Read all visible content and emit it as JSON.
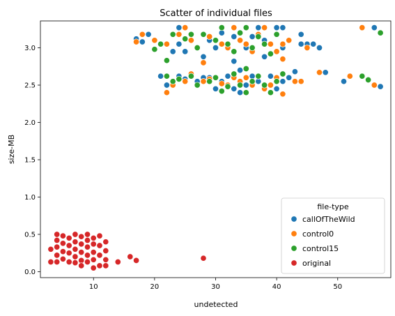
{
  "chart_data": {
    "type": "scatter",
    "title": "Scatter of individual files",
    "xlabel": "undetected",
    "ylabel": "size-MB",
    "xlim": [
      1.3,
      58.7
    ],
    "ylim": [
      -0.08,
      3.36
    ],
    "xticks": [
      10,
      20,
      30,
      40,
      50
    ],
    "yticks": [
      0.0,
      0.5,
      1.0,
      1.5,
      2.0,
      2.5,
      3.0
    ],
    "grid": false,
    "legend": {
      "title": "file-type",
      "placement": "lower-right"
    },
    "series": [
      {
        "name": "callOfTheWild",
        "color": "#1f77b4",
        "points": [
          [
            17,
            3.12
          ],
          [
            18,
            3.08
          ],
          [
            19,
            3.18
          ],
          [
            21,
            2.62
          ],
          [
            22,
            2.5
          ],
          [
            23,
            2.95
          ],
          [
            23,
            2.55
          ],
          [
            24,
            3.27
          ],
          [
            24,
            2.62
          ],
          [
            24,
            3.05
          ],
          [
            25,
            2.58
          ],
          [
            25,
            2.95
          ],
          [
            26,
            2.65
          ],
          [
            27,
            2.55
          ],
          [
            28,
            2.88
          ],
          [
            28,
            2.6
          ],
          [
            29,
            3.1
          ],
          [
            29,
            2.6
          ],
          [
            30,
            2.45
          ],
          [
            30,
            3.0
          ],
          [
            31,
            2.55
          ],
          [
            31,
            3.2
          ],
          [
            32,
            2.62
          ],
          [
            32,
            3.05
          ],
          [
            32,
            2.5
          ],
          [
            33,
            2.45
          ],
          [
            33,
            2.82
          ],
          [
            33,
            3.15
          ],
          [
            34,
            2.7
          ],
          [
            34,
            2.4
          ],
          [
            35,
            3.0
          ],
          [
            35,
            2.5
          ],
          [
            36,
            2.62
          ],
          [
            36,
            3.15
          ],
          [
            37,
            3.27
          ],
          [
            37,
            2.55
          ],
          [
            38,
            2.88
          ],
          [
            38,
            3.1
          ],
          [
            39,
            3.05
          ],
          [
            39,
            2.62
          ],
          [
            40,
            2.45
          ],
          [
            40,
            3.27
          ],
          [
            41,
            2.55
          ],
          [
            41,
            3.0
          ],
          [
            41,
            3.27
          ],
          [
            42,
            2.6
          ],
          [
            42,
            3.1
          ],
          [
            43,
            2.68
          ],
          [
            44,
            3.05
          ],
          [
            44,
            3.18
          ],
          [
            45,
            3.05
          ],
          [
            46,
            3.05
          ],
          [
            47,
            3.0
          ],
          [
            48,
            2.67
          ],
          [
            51,
            2.55
          ],
          [
            56,
            3.27
          ],
          [
            57,
            2.48
          ]
        ]
      },
      {
        "name": "control0",
        "color": "#ff7f0e",
        "points": [
          [
            17,
            3.08
          ],
          [
            18,
            3.18
          ],
          [
            20,
            3.1
          ],
          [
            22,
            2.4
          ],
          [
            22,
            3.05
          ],
          [
            23,
            2.5
          ],
          [
            24,
            3.18
          ],
          [
            25,
            3.27
          ],
          [
            25,
            2.55
          ],
          [
            26,
            3.1
          ],
          [
            26,
            2.65
          ],
          [
            27,
            3.0
          ],
          [
            28,
            2.8
          ],
          [
            28,
            2.55
          ],
          [
            29,
            3.15
          ],
          [
            29,
            2.58
          ],
          [
            30,
            2.6
          ],
          [
            31,
            3.05
          ],
          [
            31,
            2.52
          ],
          [
            32,
            3.0
          ],
          [
            32,
            2.5
          ],
          [
            33,
            3.27
          ],
          [
            33,
            2.6
          ],
          [
            34,
            2.55
          ],
          [
            34,
            3.1
          ],
          [
            35,
            2.6
          ],
          [
            35,
            3.05
          ],
          [
            36,
            2.5
          ],
          [
            36,
            2.95
          ],
          [
            37,
            3.18
          ],
          [
            37,
            2.62
          ],
          [
            38,
            3.27
          ],
          [
            38,
            2.45
          ],
          [
            39,
            2.5
          ],
          [
            39,
            3.05
          ],
          [
            40,
            2.95
          ],
          [
            40,
            2.6
          ],
          [
            41,
            2.38
          ],
          [
            41,
            2.85
          ],
          [
            41,
            3.05
          ],
          [
            42,
            3.1
          ],
          [
            43,
            2.55
          ],
          [
            44,
            2.55
          ],
          [
            45,
            3.0
          ],
          [
            47,
            2.67
          ],
          [
            52,
            2.62
          ],
          [
            54,
            3.27
          ],
          [
            56,
            2.5
          ]
        ]
      },
      {
        "name": "control15",
        "color": "#2ca02c",
        "points": [
          [
            20,
            2.98
          ],
          [
            21,
            3.05
          ],
          [
            22,
            2.83
          ],
          [
            22,
            2.62
          ],
          [
            23,
            3.18
          ],
          [
            23,
            2.55
          ],
          [
            24,
            2.58
          ],
          [
            25,
            3.12
          ],
          [
            26,
            3.18
          ],
          [
            26,
            2.62
          ],
          [
            27,
            3.0
          ],
          [
            27,
            2.5
          ],
          [
            28,
            3.18
          ],
          [
            29,
            2.55
          ],
          [
            30,
            2.6
          ],
          [
            30,
            3.1
          ],
          [
            31,
            2.42
          ],
          [
            31,
            3.27
          ],
          [
            32,
            2.48
          ],
          [
            32,
            3.05
          ],
          [
            33,
            2.95
          ],
          [
            33,
            2.65
          ],
          [
            34,
            3.2
          ],
          [
            34,
            2.5
          ],
          [
            35,
            2.72
          ],
          [
            35,
            3.27
          ],
          [
            35,
            2.4
          ],
          [
            36,
            2.55
          ],
          [
            36,
            3.0
          ],
          [
            37,
            2.62
          ],
          [
            37,
            3.15
          ],
          [
            38,
            2.5
          ],
          [
            38,
            3.05
          ],
          [
            39,
            2.4
          ],
          [
            39,
            2.92
          ],
          [
            40,
            2.55
          ],
          [
            40,
            3.18
          ],
          [
            41,
            2.65
          ],
          [
            54,
            2.62
          ],
          [
            55,
            2.57
          ],
          [
            57,
            3.2
          ]
        ]
      },
      {
        "name": "original",
        "color": "#d62728",
        "points": [
          [
            3,
            0.3
          ],
          [
            3,
            0.13
          ],
          [
            4,
            0.5
          ],
          [
            4,
            0.42
          ],
          [
            4,
            0.33
          ],
          [
            4,
            0.22
          ],
          [
            4,
            0.13
          ],
          [
            5,
            0.48
          ],
          [
            5,
            0.38
          ],
          [
            5,
            0.27
          ],
          [
            5,
            0.17
          ],
          [
            6,
            0.45
          ],
          [
            6,
            0.35
          ],
          [
            6,
            0.25
          ],
          [
            6,
            0.13
          ],
          [
            7,
            0.5
          ],
          [
            7,
            0.4
          ],
          [
            7,
            0.3
          ],
          [
            7,
            0.2
          ],
          [
            7,
            0.12
          ],
          [
            8,
            0.47
          ],
          [
            8,
            0.37
          ],
          [
            8,
            0.26
          ],
          [
            8,
            0.15
          ],
          [
            8,
            0.08
          ],
          [
            9,
            0.5
          ],
          [
            9,
            0.42
          ],
          [
            9,
            0.33
          ],
          [
            9,
            0.22
          ],
          [
            9,
            0.13
          ],
          [
            10,
            0.45
          ],
          [
            10,
            0.37
          ],
          [
            10,
            0.26
          ],
          [
            10,
            0.16
          ],
          [
            10,
            0.05
          ],
          [
            11,
            0.48
          ],
          [
            11,
            0.35
          ],
          [
            11,
            0.22
          ],
          [
            11,
            0.08
          ],
          [
            12,
            0.4
          ],
          [
            12,
            0.28
          ],
          [
            12,
            0.16
          ],
          [
            12,
            0.08
          ],
          [
            14,
            0.13
          ],
          [
            16,
            0.2
          ],
          [
            17,
            0.15
          ],
          [
            28,
            0.18
          ]
        ]
      }
    ]
  }
}
